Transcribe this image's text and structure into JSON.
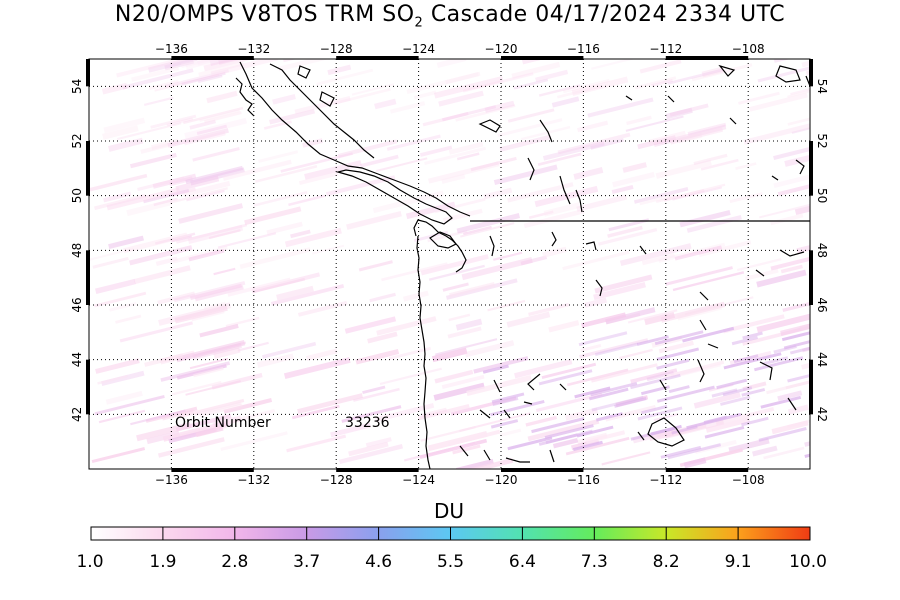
{
  "title": {
    "prefix": "N20/OMPS V8TOS TRM SO",
    "subscript": "2",
    "suffix": " Cascade 04/17/2024 2334 UTC"
  },
  "map": {
    "lon_ticks": [
      "-136",
      "-132",
      "-128",
      "-124",
      "-120",
      "-116",
      "-112",
      "-108"
    ],
    "lat_ticks": [
      "42",
      "44",
      "46",
      "48",
      "50",
      "52",
      "54"
    ],
    "lon_range": [
      -140,
      -105
    ],
    "lat_range": [
      40,
      55
    ],
    "grid": "dotted",
    "orbit_label": "Orbit Number",
    "orbit_value": "33236"
  },
  "colorbar": {
    "unit": "DU",
    "labels": [
      "1.0",
      "1.9",
      "2.8",
      "3.7",
      "4.6",
      "5.5",
      "6.4",
      "7.3",
      "8.2",
      "9.1",
      "10.0"
    ],
    "colors": [
      "#ffffff",
      "#fbd8ee",
      "#f2b6ea",
      "#c99ae6",
      "#8aa0ee",
      "#5cc8f2",
      "#52e2b0",
      "#64ec5c",
      "#c8e828",
      "#fca01c",
      "#f03c14"
    ]
  }
}
